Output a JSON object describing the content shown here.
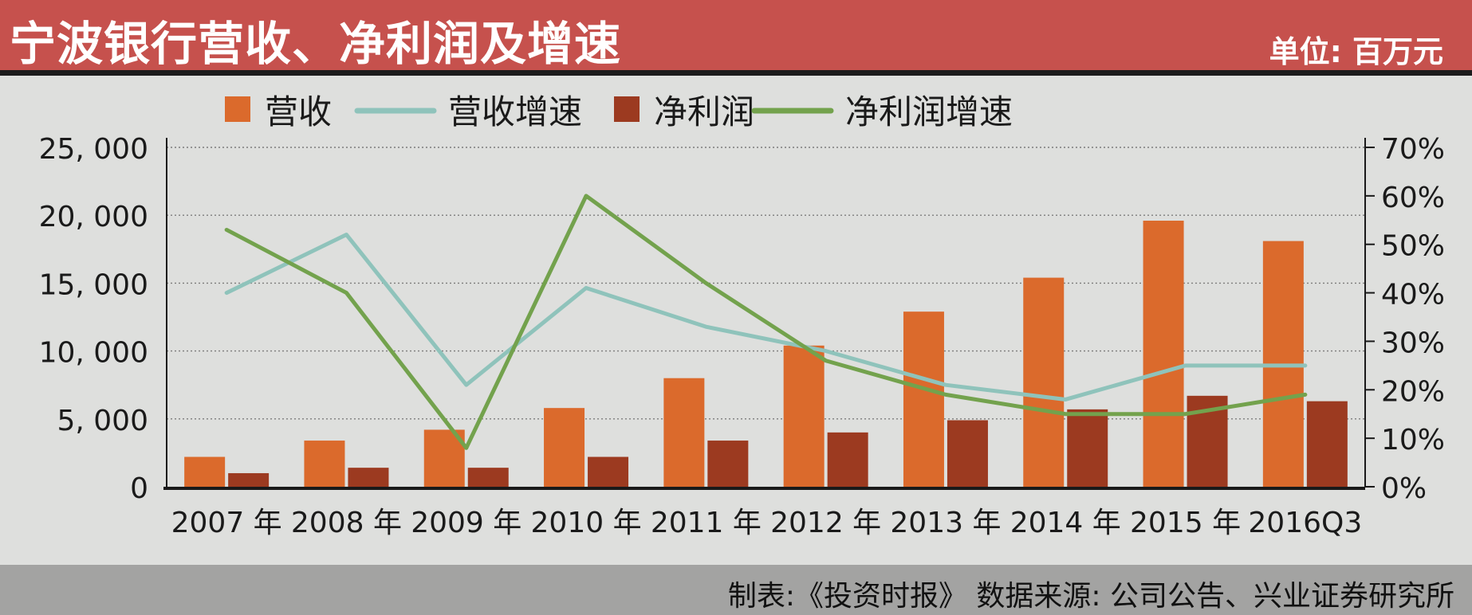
{
  "header": {
    "title": "宁波银行营收、净利润及增速",
    "unit": "单位: 百万元"
  },
  "footer": {
    "source": "制表:《投资时报》 数据来源: 公司公告、兴业证券研究所"
  },
  "colors": {
    "revenue": "#db6a2c",
    "net_profit": "#9c3a20",
    "revenue_growth": "#8fc3bb",
    "profit_growth": "#73a24d",
    "title_bg": "#c6514d",
    "footer_bg": "#a3a3a2",
    "plot_bg": "#dedfdd"
  },
  "chart_data": {
    "type": "bar",
    "categories": [
      "2007 年",
      "2008 年",
      "2009 年",
      "2010 年",
      "2011 年",
      "2012 年",
      "2013 年",
      "2014 年",
      "2015 年",
      "2016Q3"
    ],
    "series": [
      {
        "name": "营收",
        "type": "bar",
        "axis": "left",
        "color": "#db6a2c",
        "values": [
          2200,
          3400,
          4200,
          5800,
          8000,
          10400,
          12900,
          15400,
          19600,
          18100
        ]
      },
      {
        "name": "营收增速",
        "type": "line",
        "axis": "right",
        "color": "#8fc3bb",
        "values": [
          40,
          52,
          21,
          41,
          33,
          28,
          21,
          18,
          25,
          25
        ]
      },
      {
        "name": "净利润",
        "type": "bar",
        "axis": "left",
        "color": "#9c3a20",
        "values": [
          1000,
          1400,
          1400,
          2200,
          3400,
          4000,
          4900,
          5700,
          6700,
          6300
        ]
      },
      {
        "name": "净利润增速",
        "type": "line",
        "axis": "right",
        "color": "#73a24d",
        "values": [
          53,
          40,
          8,
          60,
          42,
          26,
          19,
          15,
          15,
          19
        ]
      }
    ],
    "y_left": {
      "ylim": [
        0,
        25000
      ],
      "ticks": [
        "0",
        "5, 000",
        "10, 000",
        "15, 000",
        "20, 000",
        "25, 000"
      ]
    },
    "y_right": {
      "ylim": [
        0,
        70
      ],
      "ticks": [
        "0%",
        "10%",
        "20%",
        "30%",
        "40%",
        "50%",
        "60%",
        "70%"
      ]
    },
    "legend": [
      "营收",
      "营收增速",
      "净利润",
      "净利润增速"
    ],
    "legend_position": "top",
    "grid": "horizontal-dotted"
  }
}
